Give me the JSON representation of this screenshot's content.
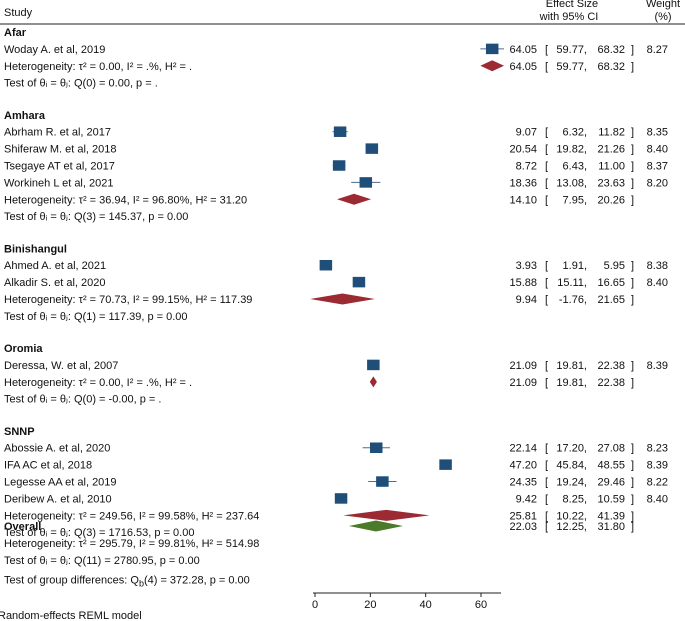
{
  "chart_data": {
    "type": "forest",
    "headers": {
      "study": "Study",
      "effect": [
        "Effect Size",
        "with 95% CI"
      ],
      "weight": [
        "Weight",
        "(%)"
      ]
    },
    "axis": {
      "min": 0,
      "max": 60,
      "ticks": [
        0,
        20,
        40,
        60
      ]
    },
    "colors": {
      "square": "#1f4e79",
      "subgroup_diamond": "#9b2a33",
      "overall_diamond": "#4c7a2b",
      "line": "#4f6b8a"
    },
    "groups": [
      {
        "name": "Afar",
        "studies": [
          {
            "name": "Woday A. et al, 2019",
            "es": 64.05,
            "lo": 59.77,
            "hi": 68.32,
            "weight": "8.27",
            "ci_text": "64.05 [ 59.77, 68.32]"
          }
        ],
        "pooled": {
          "es": 64.05,
          "lo": 59.77,
          "hi": 68.32,
          "ci_text": "64.05 [ 59.77, 68.32]"
        },
        "heterogeneity": "Heterogeneity: τ² = 0.00, I² = .%, H² = .",
        "test": "Test of θᵢ = θⱼ: Q(0) = 0.00, p = ."
      },
      {
        "name": "Amhara",
        "studies": [
          {
            "name": "Abrham R. et al, 2017",
            "es": 9.07,
            "lo": 6.32,
            "hi": 11.82,
            "weight": "8.35",
            "ci_text": "9.07 [ 6.32, 11.82]"
          },
          {
            "name": "Shiferaw M. et al, 2018",
            "es": 20.54,
            "lo": 19.82,
            "hi": 21.26,
            "weight": "8.40",
            "ci_text": "20.54 [ 19.82, 21.26]"
          },
          {
            "name": "Tsegaye AT et al, 2017",
            "es": 8.72,
            "lo": 6.43,
            "hi": 11.0,
            "weight": "8.37",
            "ci_text": "8.72 [ 6.43, 11.00]"
          },
          {
            "name": "Workineh L et al, 2021",
            "es": 18.36,
            "lo": 13.08,
            "hi": 23.63,
            "weight": "8.20",
            "ci_text": "18.36 [ 13.08, 23.63]"
          }
        ],
        "pooled": {
          "es": 14.1,
          "lo": 7.95,
          "hi": 20.26,
          "ci_text": "14.10 [ 7.95, 20.26]"
        },
        "heterogeneity": "Heterogeneity: τ² = 36.94, I² = 96.80%, H² = 31.20",
        "test": "Test of θᵢ = θⱼ: Q(3) = 145.37, p = 0.00"
      },
      {
        "name": "Binishangul",
        "studies": [
          {
            "name": "Ahmed A. et al, 2021",
            "es": 3.93,
            "lo": 1.91,
            "hi": 5.95,
            "weight": "8.38",
            "ci_text": "3.93 [ 1.91, 5.95]"
          },
          {
            "name": "Alkadir S. et al, 2020",
            "es": 15.88,
            "lo": 15.11,
            "hi": 16.65,
            "weight": "8.40",
            "ci_text": "15.88 [ 15.11, 16.65]"
          }
        ],
        "pooled": {
          "es": 9.94,
          "lo": -1.76,
          "hi": 21.65,
          "ci_text": "9.94 [ -1.76, 21.65]"
        },
        "heterogeneity": "Heterogeneity: τ² = 70.73, I² = 99.15%, H² = 117.39",
        "test": "Test of θᵢ = θⱼ: Q(1) = 117.39, p = 0.00"
      },
      {
        "name": "Oromia",
        "studies": [
          {
            "name": "Deressa, W. et al, 2007",
            "es": 21.09,
            "lo": 19.81,
            "hi": 22.38,
            "weight": "8.39",
            "ci_text": "21.09 [ 19.81, 22.38]"
          }
        ],
        "pooled": {
          "es": 21.09,
          "lo": 19.81,
          "hi": 22.38,
          "ci_text": "21.09 [ 19.81, 22.38]"
        },
        "heterogeneity": "Heterogeneity: τ² = 0.00, I² = .%, H² = .",
        "test": "Test of θᵢ = θⱼ: Q(0) = -0.00, p = ."
      },
      {
        "name": "SNNP",
        "studies": [
          {
            "name": "Abossie A. et al, 2020",
            "es": 22.14,
            "lo": 17.2,
            "hi": 27.08,
            "weight": "8.23",
            "ci_text": "22.14 [ 17.20, 27.08]"
          },
          {
            "name": "IFA AC et al, 2018",
            "es": 47.2,
            "lo": 45.84,
            "hi": 48.55,
            "weight": "8.39",
            "ci_text": "47.20 [ 45.84, 48.55]"
          },
          {
            "name": "Legesse AA et al, 2019",
            "es": 24.35,
            "lo": 19.24,
            "hi": 29.46,
            "weight": "8.22",
            "ci_text": "24.35 [ 19.24, 29.46]"
          },
          {
            "name": "Deribew A. et al, 2010",
            "es": 9.42,
            "lo": 8.25,
            "hi": 10.59,
            "weight": "8.40",
            "ci_text": "9.42 [ 8.25, 10.59]"
          }
        ],
        "pooled": {
          "es": 25.81,
          "lo": 10.22,
          "hi": 41.39,
          "ci_text": "25.81 [ 10.22, 41.39]"
        },
        "heterogeneity": "Heterogeneity: τ² = 249.56, I² = 99.58%, H² = 237.64",
        "test": "Test of θᵢ = θⱼ: Q(3) = 1716.53, p = 0.00"
      }
    ],
    "overall": {
      "label": "Overall",
      "es": 22.03,
      "lo": 12.25,
      "hi": 31.8,
      "ci_text": "22.03 [ 12.25, 31.80]",
      "heterogeneity": "Heterogeneity: τ² = 295.79, I² = 99.81%, H² = 514.98",
      "test": "Test of θᵢ = θⱼ: Q(11) = 2780.95, p = 0.00"
    },
    "group_test": "Test of group differences: Q_b(4) = 372.28, p = 0.00",
    "footnote": "Random-effects REML model"
  }
}
